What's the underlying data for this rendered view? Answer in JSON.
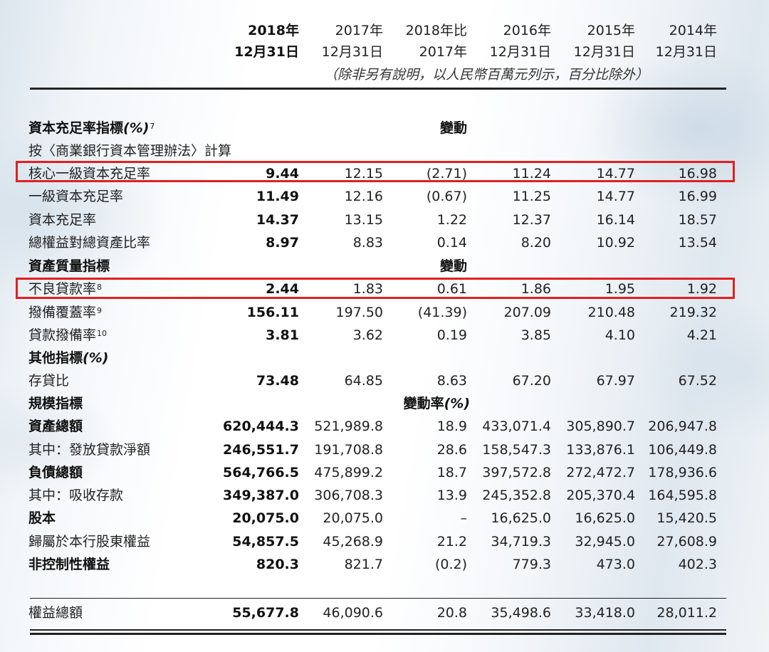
{
  "header": {
    "col1": {
      "line1": "2018年",
      "line2": "12月31日"
    },
    "col2": {
      "line1": "2017年",
      "line2": "12月31日"
    },
    "col3": {
      "line1": "2018年比",
      "line2": "2017年"
    },
    "col4": {
      "line1": "2016年",
      "line2": "12月31日"
    },
    "col5": {
      "line1": "2015年",
      "line2": "12月31日"
    },
    "col6": {
      "line1": "2014年",
      "line2": "12月31日"
    },
    "note": "（除非另有說明，以人民幣百萬元列示，百分比除外）"
  },
  "sections": {
    "capital": {
      "title": "資本充足率指標",
      "title_suffix": "(%)",
      "sup": "7",
      "change": "變動",
      "subtitle": "按〈商業銀行資本管理辦法〉計算"
    },
    "asset_quality": {
      "title": "資產質量指標",
      "change": "變動"
    },
    "other": {
      "title": "其他指標",
      "title_suffix": "(%)"
    },
    "scale": {
      "title": "規模指標",
      "change": "變動率",
      "change_suffix": "(%)"
    }
  },
  "rows": [
    {
      "label": "核心一級資本充足率",
      "v": [
        "9.44",
        "12.15",
        "(2.71)",
        "11.24",
        "14.77",
        "16.98"
      ]
    },
    {
      "label": "一級資本充足率",
      "v": [
        "11.49",
        "12.16",
        "(0.67)",
        "11.25",
        "14.77",
        "16.99"
      ]
    },
    {
      "label": "資本充足率",
      "v": [
        "14.37",
        "13.15",
        "1.22",
        "12.37",
        "16.14",
        "18.57"
      ]
    },
    {
      "label": "總權益對總資產比率",
      "v": [
        "8.97",
        "8.83",
        "0.14",
        "8.20",
        "10.92",
        "13.54"
      ]
    },
    {
      "label": "不良貸款率",
      "sup": "8",
      "v": [
        "2.44",
        "1.83",
        "0.61",
        "1.86",
        "1.95",
        "1.92"
      ]
    },
    {
      "label": "撥備覆蓋率",
      "sup": "9",
      "v": [
        "156.11",
        "197.50",
        "(41.39)",
        "207.09",
        "210.48",
        "219.32"
      ]
    },
    {
      "label": "貸款撥備率",
      "sup": "10",
      "v": [
        "3.81",
        "3.62",
        "0.19",
        "3.85",
        "4.10",
        "4.21"
      ]
    },
    {
      "label": "存貸比",
      "v": [
        "73.48",
        "64.85",
        "8.63",
        "67.20",
        "67.97",
        "67.52"
      ]
    },
    {
      "label": "資產總額",
      "v": [
        "620,444.3",
        "521,989.8",
        "18.9",
        "433,071.4",
        "305,890.7",
        "206,947.8"
      ]
    },
    {
      "label": "其中：發放貸款淨額",
      "v": [
        "246,551.7",
        "191,708.8",
        "28.6",
        "158,547.3",
        "133,876.1",
        "106,449.8"
      ]
    },
    {
      "label": "負債總額",
      "v": [
        "564,766.5",
        "475,899.2",
        "18.7",
        "397,572.8",
        "272,472.7",
        "178,936.6"
      ]
    },
    {
      "label": "其中：吸收存款",
      "v": [
        "349,387.0",
        "306,708.3",
        "13.9",
        "245,352.8",
        "205,370.4",
        "164,595.8"
      ]
    },
    {
      "label": "股本",
      "v": [
        "20,075.0",
        "20,075.0",
        "–",
        "16,625.0",
        "16,625.0",
        "15,420.5"
      ]
    },
    {
      "label": "歸屬於本行股東權益",
      "v": [
        "54,857.5",
        "45,268.9",
        "21.2",
        "34,719.3",
        "32,945.0",
        "27,608.9"
      ]
    },
    {
      "label": "非控制性權益",
      "v": [
        "820.3",
        "821.7",
        "(0.2)",
        "779.3",
        "473.0",
        "402.3"
      ]
    },
    {
      "label": "權益總額",
      "v": [
        "55,677.8",
        "46,090.6",
        "20.8",
        "35,498.6",
        "33,418.0",
        "28,011.2"
      ]
    }
  ],
  "colors": {
    "highlight_box": "#e02020",
    "rule": "#222222"
  }
}
